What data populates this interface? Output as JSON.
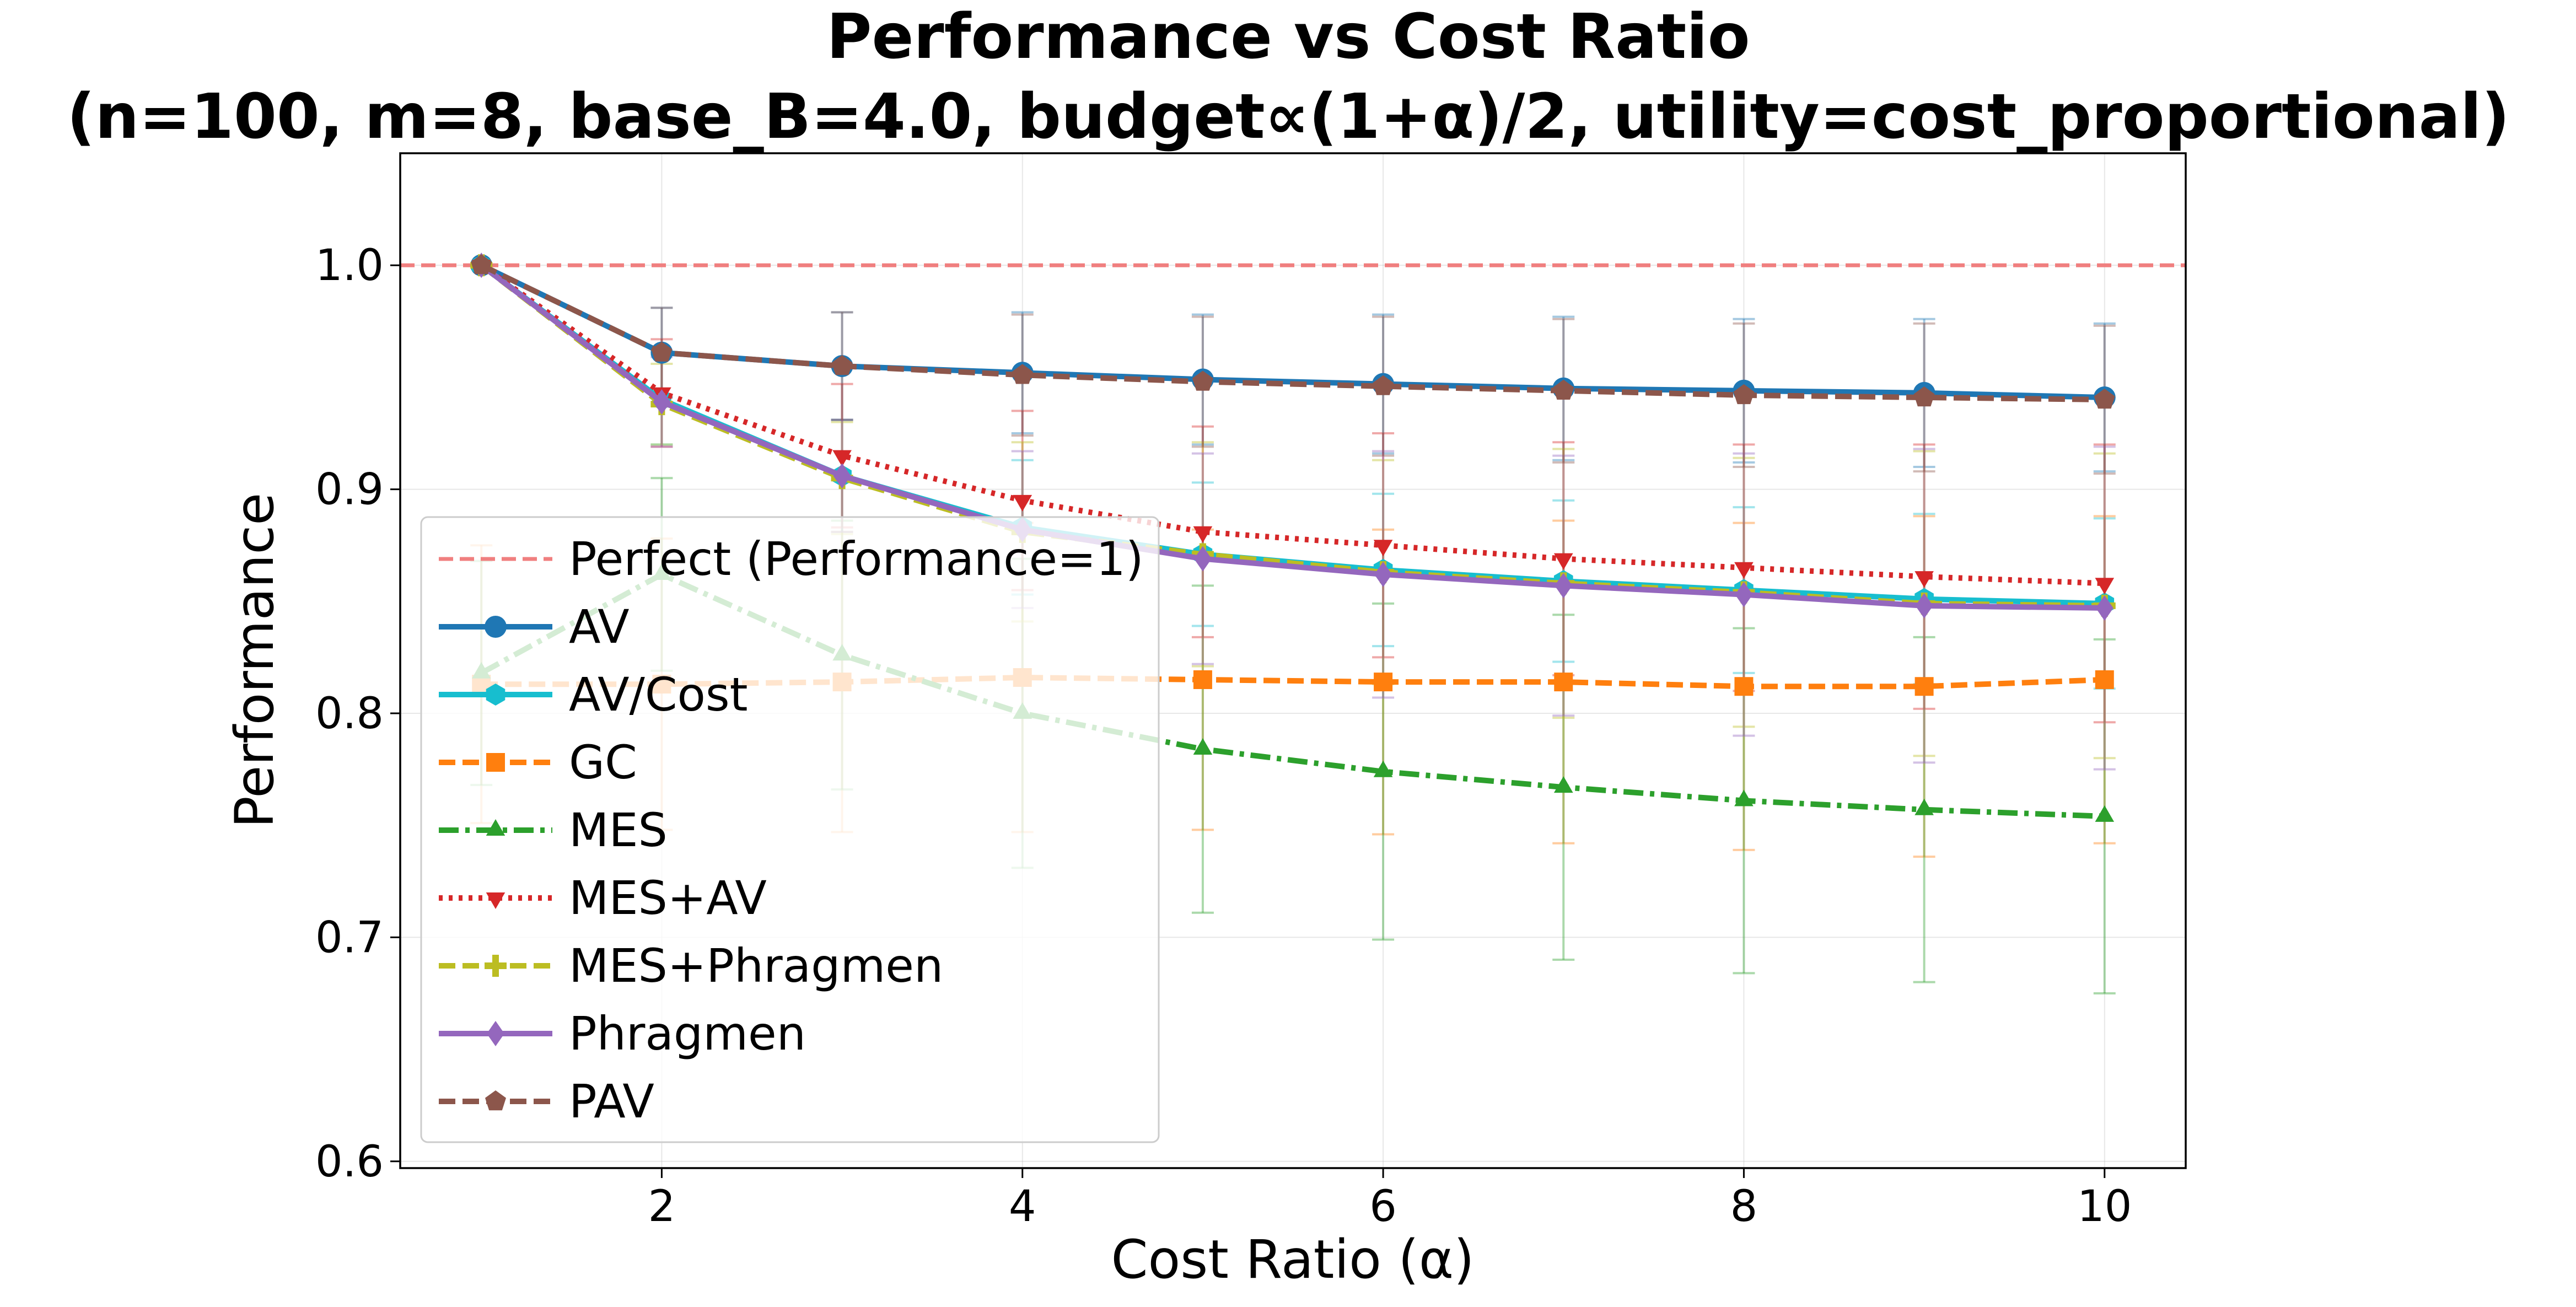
{
  "chart_data": {
    "type": "line",
    "title_line1": "Performance vs Cost Ratio",
    "title_line2": "(n=100, m=8, base_B=4.0, budget∝(1+α)/2, utility=cost_proportional)",
    "xlabel": "Cost Ratio (α)",
    "ylabel": "Performance",
    "xlim": [
      0.55,
      10.45
    ],
    "ylim": [
      0.597,
      1.05
    ],
    "xticks": [
      2,
      4,
      6,
      8,
      10
    ],
    "xtick_labels": [
      "2",
      "4",
      "6",
      "8",
      "10"
    ],
    "yticks": [
      0.6,
      0.7,
      0.8,
      0.9,
      1.0
    ],
    "ytick_labels": [
      "0.6",
      "0.7",
      "0.8",
      "0.9",
      "1.0"
    ],
    "grid": true,
    "legend_position": "lower-left",
    "x": [
      1,
      2,
      3,
      4,
      5,
      6,
      7,
      8,
      9,
      10
    ],
    "reference_line": {
      "label": "Perfect (Performance=1)",
      "value": 1.0,
      "color": "#f07f7f"
    },
    "series": [
      {
        "name": "AV",
        "color": "#1f77b4",
        "line_style": "solid",
        "marker": "circle",
        "values": [
          1.0,
          0.961,
          0.955,
          0.952,
          0.949,
          0.947,
          0.945,
          0.944,
          0.943,
          0.941
        ],
        "errors": [
          0.0,
          0.02,
          0.024,
          0.027,
          0.029,
          0.031,
          0.032,
          0.032,
          0.033,
          0.033
        ]
      },
      {
        "name": "AV/Cost",
        "color": "#17becf",
        "line_style": "solid",
        "marker": "hexagon",
        "values": [
          1.0,
          0.94,
          0.906,
          0.883,
          0.871,
          0.864,
          0.859,
          0.855,
          0.851,
          0.849
        ],
        "errors": [
          0.0,
          0.02,
          0.025,
          0.03,
          0.032,
          0.034,
          0.036,
          0.037,
          0.038,
          0.038
        ]
      },
      {
        "name": "GC",
        "color": "#ff7f0e",
        "line_style": "dashed",
        "marker": "square",
        "values": [
          0.813,
          0.813,
          0.814,
          0.816,
          0.815,
          0.814,
          0.814,
          0.812,
          0.812,
          0.815
        ],
        "errors": [
          0.062,
          0.065,
          0.067,
          0.069,
          0.067,
          0.068,
          0.072,
          0.073,
          0.076,
          0.073
        ]
      },
      {
        "name": "MES",
        "color": "#2ca02c",
        "line_style": "dashdot",
        "marker": "triangle-up",
        "values": [
          0.818,
          0.862,
          0.826,
          0.8,
          0.784,
          0.774,
          0.767,
          0.761,
          0.757,
          0.754
        ],
        "errors": [
          0.05,
          0.043,
          0.06,
          0.069,
          0.073,
          0.075,
          0.077,
          0.077,
          0.077,
          0.079
        ]
      },
      {
        "name": "MES+AV",
        "color": "#d62728",
        "line_style": "dotted",
        "marker": "triangle-down",
        "values": [
          1.0,
          0.943,
          0.915,
          0.895,
          0.881,
          0.875,
          0.869,
          0.865,
          0.861,
          0.858
        ],
        "errors": [
          0.0,
          0.024,
          0.032,
          0.04,
          0.047,
          0.05,
          0.052,
          0.055,
          0.059,
          0.062
        ]
      },
      {
        "name": "MES+Phragmen",
        "color": "#bcbd22",
        "line_style": "dashed",
        "marker": "plus",
        "values": [
          1.0,
          0.938,
          0.905,
          0.881,
          0.871,
          0.863,
          0.858,
          0.854,
          0.849,
          0.848
        ],
        "errors": [
          0.0,
          0.018,
          0.025,
          0.04,
          0.05,
          0.05,
          0.06,
          0.06,
          0.068,
          0.068
        ]
      },
      {
        "name": "Phragmen",
        "color": "#9467bd",
        "line_style": "solid",
        "marker": "diamond",
        "values": [
          1.0,
          0.939,
          0.906,
          0.882,
          0.869,
          0.862,
          0.857,
          0.853,
          0.848,
          0.847
        ],
        "errors": [
          0.0,
          0.02,
          0.025,
          0.035,
          0.047,
          0.055,
          0.058,
          0.063,
          0.07,
          0.072
        ]
      },
      {
        "name": "PAV",
        "color": "#8c564b",
        "line_style": "dashed",
        "marker": "pentagon",
        "values": [
          1.0,
          0.961,
          0.955,
          0.951,
          0.948,
          0.946,
          0.944,
          0.942,
          0.941,
          0.94
        ],
        "errors": [
          0.0,
          0.02,
          0.024,
          0.027,
          0.029,
          0.031,
          0.032,
          0.032,
          0.033,
          0.033
        ]
      }
    ]
  }
}
